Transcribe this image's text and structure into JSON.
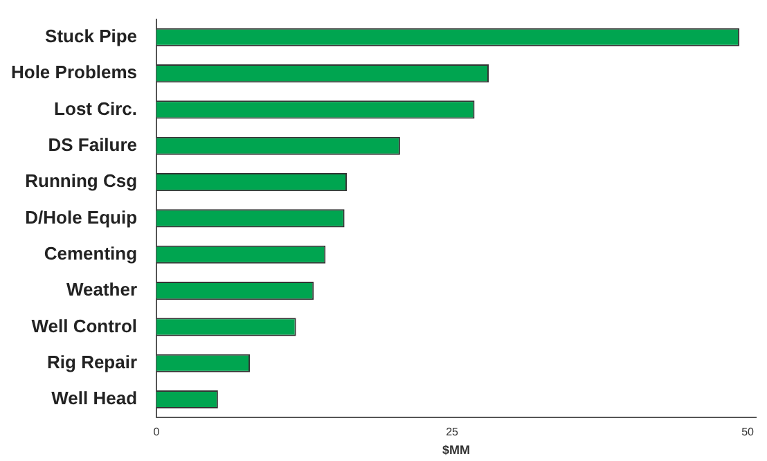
{
  "chart_data": {
    "type": "bar",
    "orientation": "horizontal",
    "xlabel": "$MM",
    "categories": [
      "Stuck Pipe",
      "Hole Problems",
      "Lost Circ.",
      "DS Failure",
      "Running Csg",
      "D/Hole Equip",
      "Cementing",
      "Weather",
      "Well Control",
      "Rig Repair",
      "Well Head"
    ],
    "values": [
      49.3,
      28.1,
      26.9,
      20.6,
      16.1,
      15.9,
      14.3,
      13.3,
      11.8,
      7.9,
      5.2
    ],
    "color": "#00a550",
    "xlim": [
      0,
      50.7
    ],
    "xticks": [
      0,
      25,
      50
    ],
    "grid": false,
    "legend": false
  }
}
